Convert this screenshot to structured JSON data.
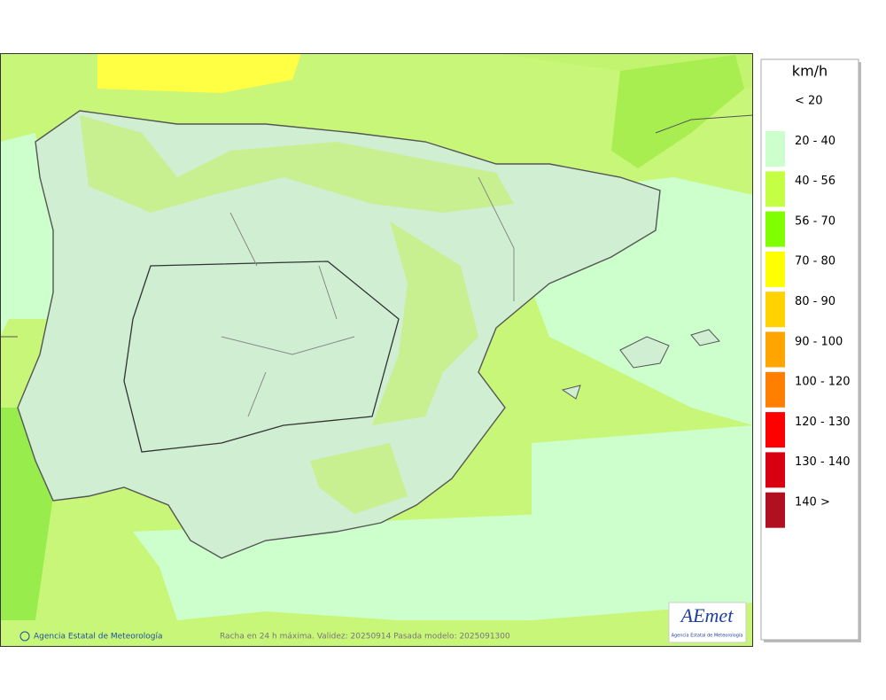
{
  "map": {
    "credit": "Agencia Estatal de Meteorología",
    "caption": "Racha en 24 h máxima. Validez: 20250914 Pasada modelo: 2025091300",
    "logo": "AEmet",
    "logo_subtitle": "Agencia Estatal de Meteorología"
  },
  "legend": {
    "title": "km/h",
    "entries": [
      {
        "label": "< 20",
        "color": "#ffffff"
      },
      {
        "label": "20 - 40",
        "color": "#ccffcc"
      },
      {
        "label": "40 - 56",
        "color": "#c4ff44"
      },
      {
        "label": "56 - 70",
        "color": "#80ff00"
      },
      {
        "label": "70 - 80",
        "color": "#ffff00"
      },
      {
        "label": "80 - 90",
        "color": "#ffd200"
      },
      {
        "label": "90 - 100",
        "color": "#ffa500"
      },
      {
        "label": "100 - 120",
        "color": "#ff8000"
      },
      {
        "label": "120 - 130",
        "color": "#ff0000"
      },
      {
        "label": "130 - 140",
        "color": "#d80010"
      },
      {
        "label": "140 >",
        "color": "#b01020"
      }
    ]
  }
}
